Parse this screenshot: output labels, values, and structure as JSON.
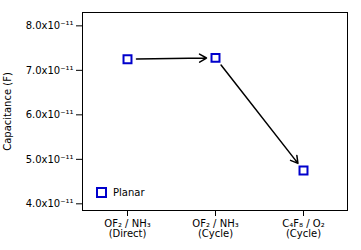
{
  "chart_data": {
    "type": "scatter",
    "categories": [
      "OF₂ / NH₃\n(Direct)",
      "OF₂ / NH₃\n(Cycle)",
      "C₄F₈ / O₂\n(Cycle)"
    ],
    "series": [
      {
        "name": "Planar",
        "color": "#0000CC",
        "marker": "square",
        "values": [
          7.25e-11,
          7.28e-11,
          4.75e-11
        ]
      }
    ],
    "ylabel": "Capacitance (F)",
    "ylim": [
      3.85e-11,
      8.3e-11
    ],
    "yticks": [
      {
        "value": 4e-11,
        "label": "4.0x10⁻¹¹"
      },
      {
        "value": 5e-11,
        "label": "5.0x10⁻¹¹"
      },
      {
        "value": 6e-11,
        "label": "6.0x10⁻¹¹"
      },
      {
        "value": 7e-11,
        "label": "7.0x10⁻¹¹"
      },
      {
        "value": 8e-11,
        "label": "8.0x10⁻¹¹"
      }
    ],
    "legend": "lower left"
  }
}
